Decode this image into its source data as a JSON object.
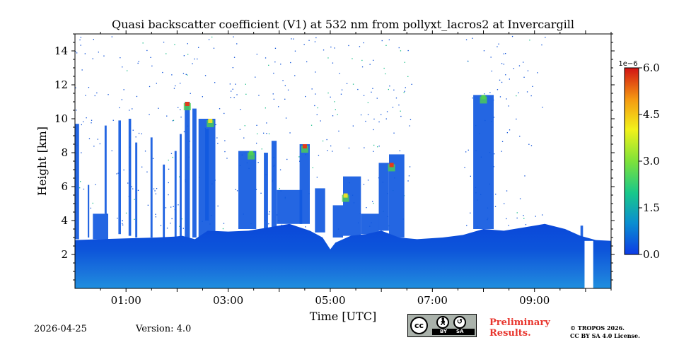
{
  "chart_data": {
    "type": "heatmap",
    "title": "Quasi backscatter coefficient (V1) at 532 nm from pollyxt_lacros2 at Invercargill",
    "xlabel": "Time [UTC]",
    "ylabel": "Height [km]",
    "xlim": [
      0.0,
      10.5
    ],
    "ylim": [
      0.0,
      15.0
    ],
    "x_ticks": [
      1,
      3,
      5,
      7,
      9
    ],
    "x_tick_labels": [
      "01:00",
      "03:00",
      "05:00",
      "07:00",
      "09:00"
    ],
    "y_ticks": [
      2,
      4,
      6,
      8,
      10,
      12,
      14
    ],
    "y_tick_labels": [
      "2",
      "4",
      "6",
      "8",
      "10",
      "12",
      "14"
    ],
    "colorbar": {
      "min": 0.0,
      "max": 6.0,
      "ticks": [
        0.0,
        1.5,
        3.0,
        4.5,
        6.0
      ],
      "tick_labels": [
        "0.0",
        "1.5",
        "3.0",
        "4.5",
        "6.0"
      ],
      "scale_label": "1e−6",
      "colormap": [
        "#0d3be6",
        "#0a8fd0",
        "#18c88a",
        "#7ee23a",
        "#f2f21a",
        "#f59a12",
        "#d21414"
      ]
    },
    "colors": {
      "aerosol_low": "#1a7fe0",
      "aerosol": "#0b4fd8",
      "cloud_body": "#1159e0",
      "cloud_edge_green": "#4ecf52",
      "cloud_edge_yellow": "#e8e02a",
      "cloud_edge_red": "#e23a1a",
      "no_data": "#ffffff"
    },
    "ground_layer_top": [
      [
        0.0,
        2.85
      ],
      [
        0.5,
        2.9
      ],
      [
        1.0,
        2.95
      ],
      [
        1.6,
        3.0
      ],
      [
        1.95,
        3.05
      ],
      [
        2.1,
        3.1
      ],
      [
        2.35,
        2.9
      ],
      [
        2.6,
        3.4
      ],
      [
        3.0,
        3.35
      ],
      [
        3.4,
        3.4
      ],
      [
        3.8,
        3.6
      ],
      [
        4.2,
        3.8
      ],
      [
        4.6,
        3.4
      ],
      [
        4.85,
        3.0
      ],
      [
        5.0,
        2.3
      ],
      [
        5.1,
        2.7
      ],
      [
        5.4,
        3.1
      ],
      [
        5.7,
        3.2
      ],
      [
        6.0,
        3.4
      ],
      [
        6.35,
        3.0
      ],
      [
        6.7,
        2.9
      ],
      [
        7.2,
        3.0
      ],
      [
        7.6,
        3.15
      ],
      [
        8.0,
        3.5
      ],
      [
        8.4,
        3.4
      ],
      [
        8.8,
        3.6
      ],
      [
        9.2,
        3.8
      ],
      [
        9.6,
        3.5
      ],
      [
        9.9,
        3.1
      ],
      [
        10.2,
        2.85
      ],
      [
        10.5,
        2.8
      ]
    ],
    "cloud_columns": [
      {
        "t_start": 0.0,
        "t_end": 0.08,
        "bottom_km": 2.9,
        "top_km": 9.7
      },
      {
        "t_start": 0.25,
        "t_end": 0.28,
        "bottom_km": 3.0,
        "top_km": 6.1
      },
      {
        "t_start": 0.35,
        "t_end": 0.65,
        "bottom_km": 2.9,
        "top_km": 4.4
      },
      {
        "t_start": 0.58,
        "t_end": 0.62,
        "bottom_km": 4.4,
        "top_km": 9.6
      },
      {
        "t_start": 0.85,
        "t_end": 0.9,
        "bottom_km": 3.2,
        "top_km": 9.9
      },
      {
        "t_start": 1.05,
        "t_end": 1.1,
        "bottom_km": 3.1,
        "top_km": 10.0
      },
      {
        "t_start": 1.18,
        "t_end": 1.22,
        "bottom_km": 3.0,
        "top_km": 8.6
      },
      {
        "t_start": 1.48,
        "t_end": 1.52,
        "bottom_km": 3.0,
        "top_km": 8.9
      },
      {
        "t_start": 1.72,
        "t_end": 1.76,
        "bottom_km": 3.0,
        "top_km": 7.3
      },
      {
        "t_start": 1.95,
        "t_end": 1.99,
        "bottom_km": 3.0,
        "top_km": 8.1
      },
      {
        "t_start": 2.05,
        "t_end": 2.09,
        "bottom_km": 2.6,
        "top_km": 9.1
      },
      {
        "t_start": 2.15,
        "t_end": 2.25,
        "bottom_km": 2.6,
        "top_km": 11.0
      },
      {
        "t_start": 2.3,
        "t_end": 2.38,
        "bottom_km": 3.0,
        "top_km": 10.6
      },
      {
        "t_start": 2.42,
        "t_end": 2.75,
        "bottom_km": 2.9,
        "top_km": 10.0
      },
      {
        "t_start": 2.55,
        "t_end": 2.62,
        "bottom_km": 4.0,
        "top_km": 9.4
      },
      {
        "t_start": 3.2,
        "t_end": 3.55,
        "bottom_km": 3.5,
        "top_km": 8.1
      },
      {
        "t_start": 3.7,
        "t_end": 3.78,
        "bottom_km": 3.4,
        "top_km": 8.0
      },
      {
        "t_start": 3.85,
        "t_end": 3.95,
        "bottom_km": 2.7,
        "top_km": 8.7
      },
      {
        "t_start": 3.95,
        "t_end": 4.45,
        "bottom_km": 3.8,
        "top_km": 5.8
      },
      {
        "t_start": 4.4,
        "t_end": 4.6,
        "bottom_km": 3.8,
        "top_km": 8.5
      },
      {
        "t_start": 4.7,
        "t_end": 4.9,
        "bottom_km": 3.3,
        "top_km": 5.9
      },
      {
        "t_start": 5.05,
        "t_end": 5.25,
        "bottom_km": 3.0,
        "top_km": 4.9
      },
      {
        "t_start": 5.25,
        "t_end": 5.6,
        "bottom_km": 3.1,
        "top_km": 6.6
      },
      {
        "t_start": 5.6,
        "t_end": 5.95,
        "bottom_km": 3.2,
        "top_km": 4.4
      },
      {
        "t_start": 5.95,
        "t_end": 6.15,
        "bottom_km": 3.4,
        "top_km": 7.4
      },
      {
        "t_start": 6.15,
        "t_end": 6.45,
        "bottom_km": 3.0,
        "top_km": 7.9
      },
      {
        "t_start": 7.8,
        "t_end": 8.2,
        "bottom_km": 3.5,
        "top_km": 11.4
      },
      {
        "t_start": 9.9,
        "t_end": 9.95,
        "bottom_km": 2.8,
        "top_km": 3.7
      }
    ],
    "cloud_tops_colored": [
      {
        "t": 2.2,
        "top_km": 11.0,
        "level": "red"
      },
      {
        "t": 2.65,
        "top_km": 10.0,
        "level": "yellow"
      },
      {
        "t": 3.45,
        "top_km": 8.1,
        "level": "green"
      },
      {
        "t": 4.5,
        "top_km": 8.5,
        "level": "red"
      },
      {
        "t": 5.3,
        "top_km": 5.6,
        "level": "yellow"
      },
      {
        "t": 6.2,
        "top_km": 7.4,
        "level": "red"
      },
      {
        "t": 8.0,
        "top_km": 11.4,
        "level": "green"
      }
    ],
    "no_data_gap": {
      "t_start": 9.98,
      "t_end": 10.15,
      "bottom_km": 0.0,
      "top_km": 2.8
    }
  },
  "footer": {
    "date": "2026-04-25",
    "version": "Version: 4.0",
    "license_badge": {
      "cc": "cc",
      "by": "BY",
      "sa": "SA"
    },
    "preliminary": [
      "Preliminary",
      "Results."
    ],
    "copyright": [
      "© TROPOS 2026.",
      "CC BY SA 4.0 License."
    ]
  }
}
